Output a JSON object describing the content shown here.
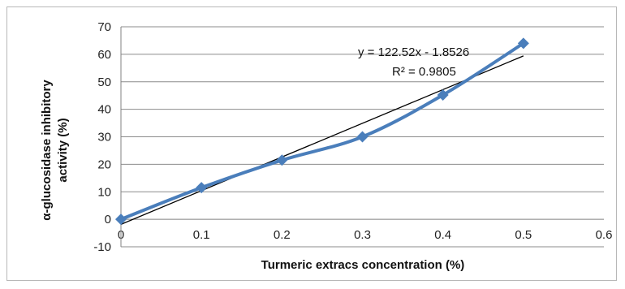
{
  "chart_data": {
    "type": "scatter",
    "title": "",
    "xlabel": "Turmeric extracs concentration (%)",
    "ylabel_line1": "α-glucosidase inhibitory",
    "ylabel_line2": "activity (%)",
    "xlim": [
      0,
      0.6
    ],
    "ylim": [
      -10,
      70
    ],
    "x_ticks": [
      "0",
      "0.1",
      "0.2",
      "0.3",
      "0.4",
      "0.5",
      "0.6"
    ],
    "y_ticks": [
      "-10",
      "0",
      "10",
      "20",
      "30",
      "40",
      "50",
      "60",
      "70"
    ],
    "grid": "horizontal",
    "legend": "none",
    "series": [
      {
        "x": [
          0,
          0.1,
          0.2,
          0.3,
          0.4,
          0.5
        ],
        "y": [
          0,
          11.5,
          21.5,
          30,
          45.2,
          64
        ],
        "color": "#4a7ebb",
        "marker": "diamond",
        "smooth": true
      }
    ],
    "trendline": {
      "type": "linear",
      "slope": 122.52,
      "intercept": -1.8526,
      "color": "#000000",
      "equation": "y = 122.52x - 1.8526",
      "r_squared": "R² = 0.9805"
    }
  }
}
